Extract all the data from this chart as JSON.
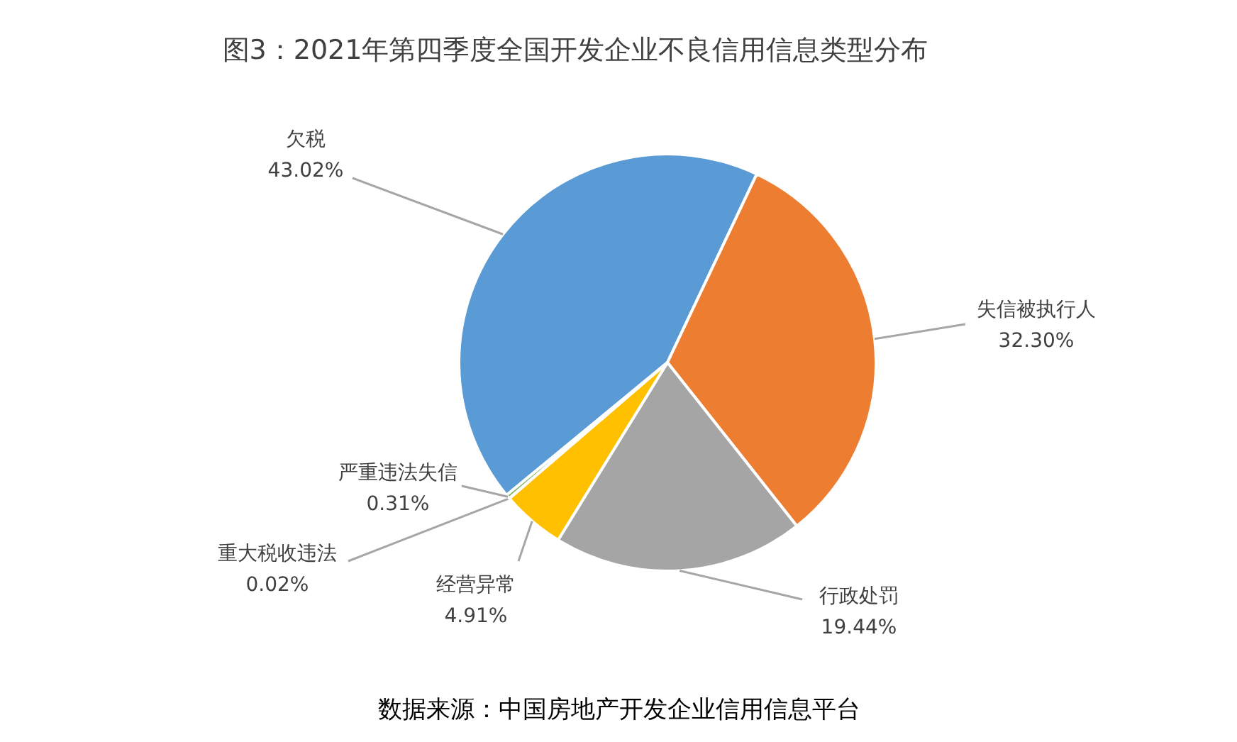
{
  "chart_data": {
    "type": "pie",
    "title": "图3：2021年第四季度全国开发企业不良信用信息类型分布",
    "categories": [
      "欠税",
      "失信被执行人",
      "行政处罚",
      "经营异常",
      "重大税收违法",
      "严重违法失信"
    ],
    "values": [
      43.02,
      32.3,
      19.44,
      4.91,
      0.02,
      0.31
    ],
    "value_labels": [
      "43.02%",
      "32.30%",
      "19.44%",
      "4.91%",
      "0.02%",
      "0.31%"
    ],
    "colors": [
      "#5b9bd5",
      "#ed7d31",
      "#a5a5a5",
      "#ffc000",
      "#4472c4",
      "#70ad47"
    ],
    "annotations": [
      "数据来源：中国房地产开发企业信用信息平台"
    ]
  }
}
